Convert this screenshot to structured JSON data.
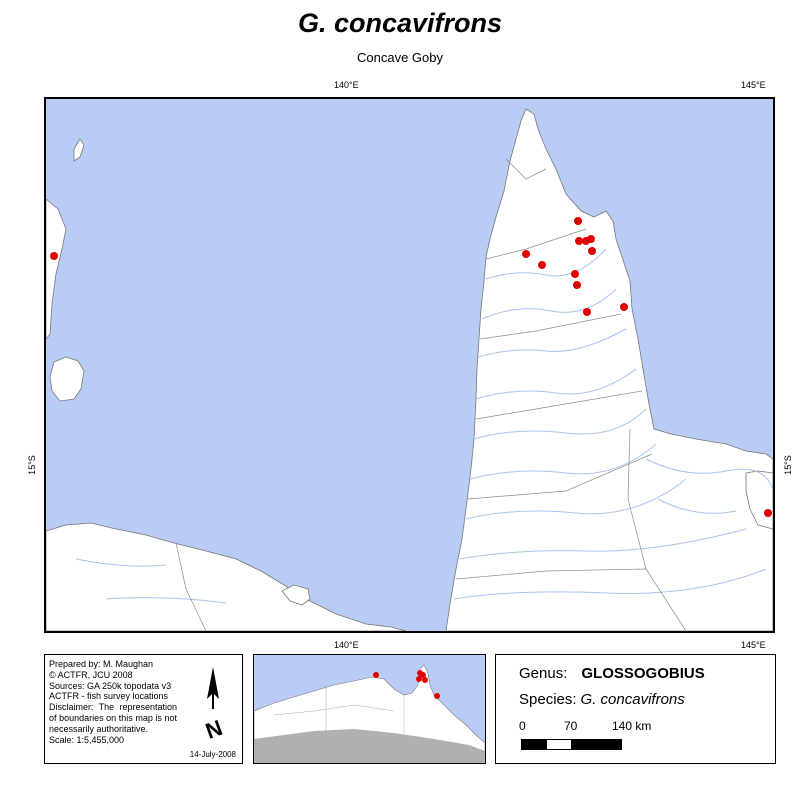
{
  "title": "G. concavifrons",
  "subtitle": "Concave Goby",
  "grid_labels": {
    "top_lon_1": "140°E",
    "top_lon_2": "145°E",
    "bottom_lon_1": "140°E",
    "bottom_lon_2": "145°E",
    "left_lat": "15°S",
    "right_lat": "15°S"
  },
  "info": {
    "prepared_by": "Prepared by: M. Maughan",
    "copyright": "© ACTFR, JCU 2008",
    "sources": "Sources: GA 250k topodata v3",
    "sources2": "ACTFR - fish survey locations",
    "disclaimer": "Disclaimer: The representation of boundaries on this map is not necessarily authoritative.",
    "scale": "Scale: 1:5,455,000",
    "date": "14-July-2008",
    "north_label": "N"
  },
  "legend": {
    "genus_label": "Genus:",
    "genus_value": "GLOSSOGOBIUS",
    "species_label": "Species:",
    "species_value": "G. concavifrons",
    "scale_0": "0",
    "scale_70": "70",
    "scale_140": "140 km"
  },
  "colors": {
    "water": "#b8ccf5",
    "land": "#ffffff",
    "river": "#a9c3ee",
    "boundary": "#8c8c8c",
    "record": "#e00000",
    "inset_land_grey": "#b0b0b0"
  }
}
